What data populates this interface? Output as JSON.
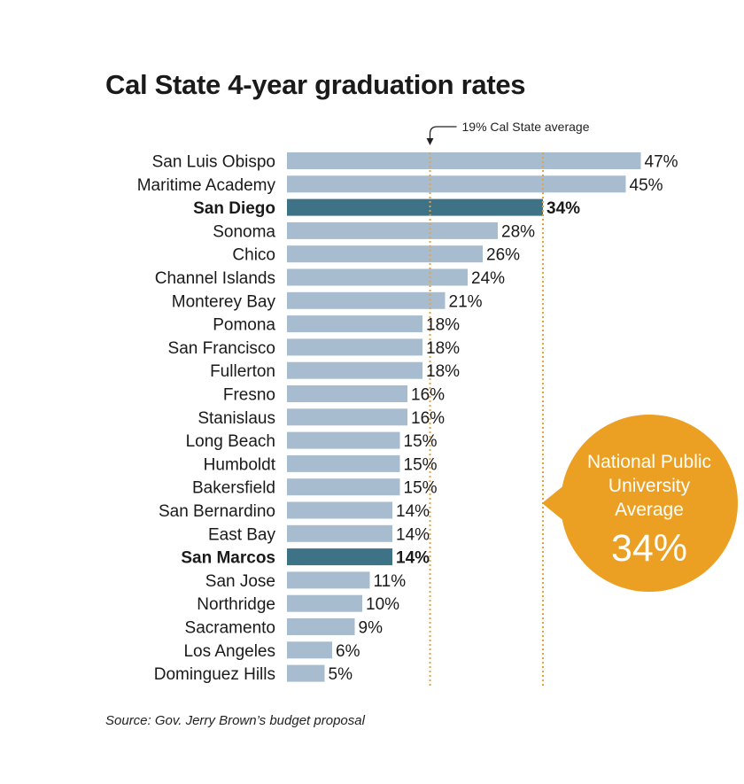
{
  "chart_data": {
    "type": "bar",
    "orientation": "horizontal",
    "title": "Cal State 4-year graduation rates",
    "categories": [
      "San Luis Obispo",
      "Maritime Academy",
      "San Diego",
      "Sonoma",
      "Chico",
      "Channel Islands",
      "Monterey Bay",
      "Pomona",
      "San Francisco",
      "Fullerton",
      "Fresno",
      "Stanislaus",
      "Long Beach",
      "Humboldt",
      "Bakersfield",
      "San Bernardino",
      "East Bay",
      "San Marcos",
      "San Jose",
      "Northridge",
      "Sacramento",
      "Los Angeles",
      "Dominguez Hills"
    ],
    "values": [
      47,
      45,
      34,
      28,
      26,
      24,
      21,
      18,
      18,
      18,
      16,
      16,
      15,
      15,
      15,
      14,
      14,
      14,
      11,
      10,
      9,
      6,
      5
    ],
    "value_labels": [
      "47%",
      "45%",
      "34%",
      "28%",
      "26%",
      "24%",
      "21%",
      "18%",
      "18%",
      "18%",
      "16%",
      "16%",
      "15%",
      "15%",
      "15%",
      "14%",
      "14%",
      "14%",
      "11%",
      "10%",
      "9%",
      "6%",
      "5%"
    ],
    "highlighted": [
      "San Diego",
      "San Marcos"
    ],
    "bar_color": "#a7bccf",
    "highlight_color": "#3e7287",
    "reference_lines": [
      {
        "value": 19,
        "label": "19% Cal State average",
        "color": "#e8a23c"
      },
      {
        "value": 34,
        "label": "",
        "color": "#e8a23c"
      }
    ],
    "callout": {
      "lines": [
        "National Public",
        "University",
        "Average"
      ],
      "value": "34%",
      "color": "#eba023"
    },
    "source": "Source: Gov. Jerry Brown’s budget proposal",
    "grid": false
  }
}
